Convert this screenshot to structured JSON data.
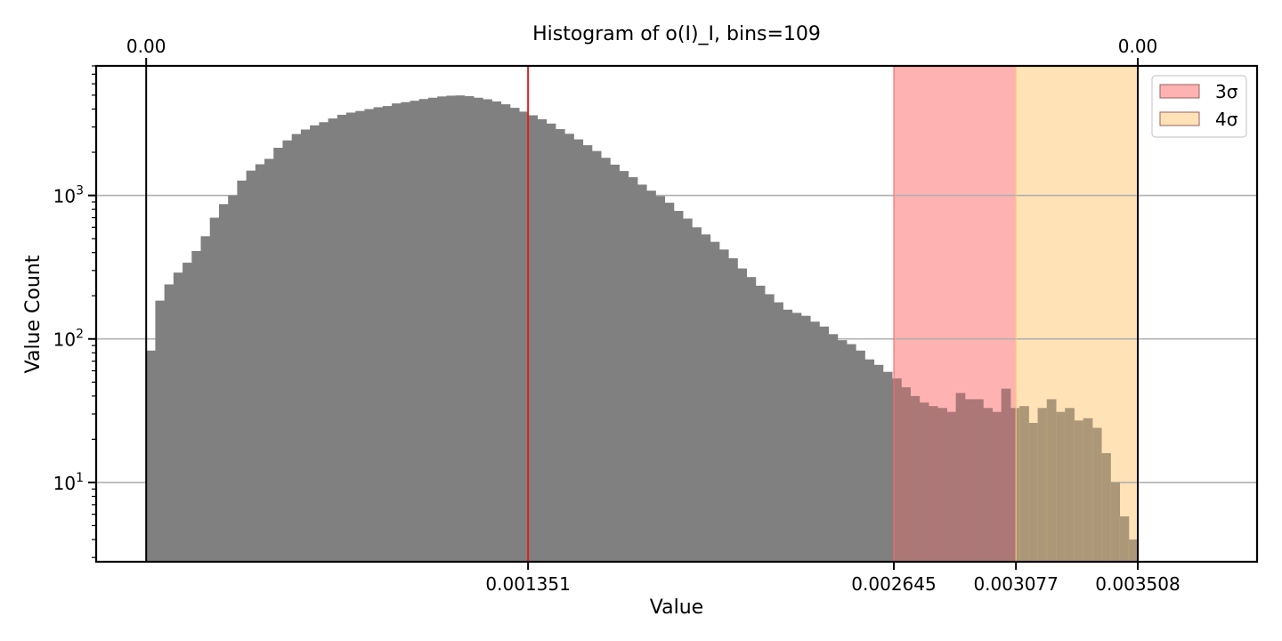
{
  "chart_data": {
    "type": "bar",
    "title": "Histogram of o(I)_I, bins=109",
    "xlabel": "Value",
    "ylabel": "Value Count",
    "yscale": "log",
    "ylim": [
      2.8,
      8000
    ],
    "xlim": [
      -0.000177,
      0.00393
    ],
    "data_range": [
      0.0,
      0.003508
    ],
    "bins": 109,
    "grid": "y-major",
    "bin_counts": [
      83,
      185,
      240,
      290,
      340,
      410,
      520,
      700,
      870,
      1000,
      1270,
      1490,
      1650,
      1800,
      2150,
      2420,
      2680,
      2880,
      3080,
      3240,
      3440,
      3650,
      3780,
      3880,
      4000,
      4120,
      4200,
      4380,
      4470,
      4570,
      4700,
      4800,
      4900,
      4960,
      4980,
      4920,
      4800,
      4680,
      4520,
      4320,
      4080,
      3840,
      3620,
      3400,
      3170,
      2900,
      2690,
      2460,
      2240,
      2040,
      1830,
      1640,
      1480,
      1340,
      1190,
      1080,
      990,
      890,
      780,
      690,
      600,
      535,
      475,
      420,
      365,
      310,
      270,
      235,
      205,
      180,
      160,
      152,
      145,
      132,
      122,
      108,
      98,
      92,
      83,
      72,
      66,
      59,
      53,
      46,
      40,
      36,
      34,
      33,
      31,
      42,
      38,
      38,
      33,
      31,
      45,
      33,
      34,
      26,
      33,
      38,
      31,
      33,
      27,
      28,
      24,
      16,
      10,
      5.8,
      4.0
    ],
    "mean": {
      "value": 0.001351,
      "label": "0.001351",
      "color": "#dd1f1f"
    },
    "limits": [
      {
        "value": 0.0,
        "top_label": "0.00",
        "color": "#000000"
      },
      {
        "value": 0.003508,
        "top_label": "0.00",
        "color": "#000000"
      }
    ],
    "bands": [
      {
        "name": "3σ",
        "from": 0.002645,
        "to": 0.003077,
        "color": "#ff6666",
        "opacity": 0.5
      },
      {
        "name": "4σ",
        "from": 0.003077,
        "to": 0.003508,
        "color": "#ffc66d",
        "opacity": 0.5
      }
    ],
    "xticks": [
      {
        "value": 0.001351,
        "label": "0.001351"
      },
      {
        "value": 0.002645,
        "label": "0.002645"
      },
      {
        "value": 0.003077,
        "label": "0.003077"
      },
      {
        "value": 0.003508,
        "label": "0.003508"
      }
    ],
    "yticks": [
      {
        "value": 10,
        "base": "10",
        "exp": "1"
      },
      {
        "value": 100,
        "base": "10",
        "exp": "2"
      },
      {
        "value": 1000,
        "base": "10",
        "exp": "3"
      }
    ],
    "legend": {
      "placement": "top-right",
      "entries": [
        "3σ",
        "4σ"
      ]
    },
    "bar_color": "#808080"
  }
}
